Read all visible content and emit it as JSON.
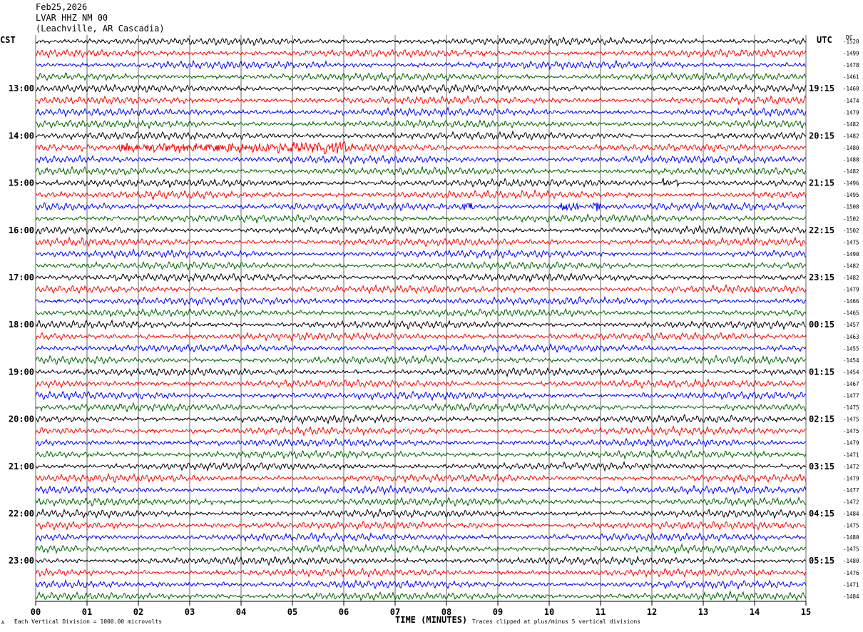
{
  "header": {
    "date": "Feb25,2026",
    "station": "LVAR HHZ NM 00",
    "location": "(Leachville, AR Cascadia)"
  },
  "labels": {
    "left_tz": "CST",
    "right_tz": "UTC",
    "dc": "DC",
    "footer_left": "Each Vertical Division = 1000.00 microvolts",
    "footer_center": "TIME (MINUTES)",
    "footer_right": "Traces clipped at plus/minus 5 vertical divisions",
    "corner_mark": "A"
  },
  "colors": {
    "trace_cycle": [
      "#000000",
      "#ff0000",
      "#0000ff",
      "#006400"
    ],
    "grid": "#000000",
    "background": "#ffffff"
  },
  "chart_data": {
    "type": "line",
    "title": "",
    "xlabel": "TIME (MINUTES)",
    "ylabel": "",
    "xlim": [
      0,
      15
    ],
    "x_ticks": [
      "00",
      "01",
      "02",
      "03",
      "04",
      "05",
      "06",
      "07",
      "08",
      "09",
      "10",
      "11",
      "12",
      "13",
      "14",
      "15"
    ],
    "trace_minutes": 15,
    "trace_count": 48,
    "left_hour_labels": [
      "13:00",
      "14:00",
      "15:00",
      "16:00",
      "17:00",
      "18:00",
      "19:00",
      "20:00",
      "21:00",
      "22:00",
      "23:00"
    ],
    "right_hour_labels": [
      "19:15",
      "20:15",
      "21:15",
      "22:15",
      "23:15",
      "00:15",
      "01:15",
      "02:15",
      "03:15",
      "04:15",
      "05:15"
    ],
    "hour_label_first_trace": 4,
    "hour_label_every": 4,
    "dc_offsets": [
      "-1520",
      "-1499",
      "-1478",
      "-1461",
      "-1460",
      "-1474",
      "-1479",
      "-1482",
      "-1482",
      "-1480",
      "-1488",
      "-1482",
      "-1496",
      "-1495",
      "-1508",
      "-1502",
      "-1502",
      "-1475",
      "-1490",
      "-1482",
      "-1482",
      "-1479",
      "-1466",
      "-1465",
      "-1457",
      "-1463",
      "-1455",
      "-1454",
      "-1454",
      "-1467",
      "-1477",
      "-1475",
      "-1475",
      "-1475",
      "-1479",
      "-1471",
      "-1472",
      "-1479",
      "-1477",
      "-1472",
      "-1484",
      "-1475",
      "-1480",
      "-1475",
      "-1480",
      "-1476",
      "-1471",
      "-1484"
    ],
    "events": [
      {
        "trace": 9,
        "start_min": 1.6,
        "end_min": 6.2,
        "amplitude": 2.2
      },
      {
        "trace": 14,
        "start_min": 8.3,
        "end_min": 8.5,
        "amplitude": 2.0
      },
      {
        "trace": 14,
        "start_min": 10.2,
        "end_min": 10.6,
        "amplitude": 2.2
      },
      {
        "trace": 14,
        "start_min": 10.85,
        "end_min": 11.0,
        "amplitude": 3.5
      },
      {
        "trace": 14,
        "start_min": 13.6,
        "end_min": 13.75,
        "amplitude": 1.5
      },
      {
        "trace": 12,
        "start_min": 12.2,
        "end_min": 12.5,
        "amplitude": 1.6
      }
    ]
  }
}
